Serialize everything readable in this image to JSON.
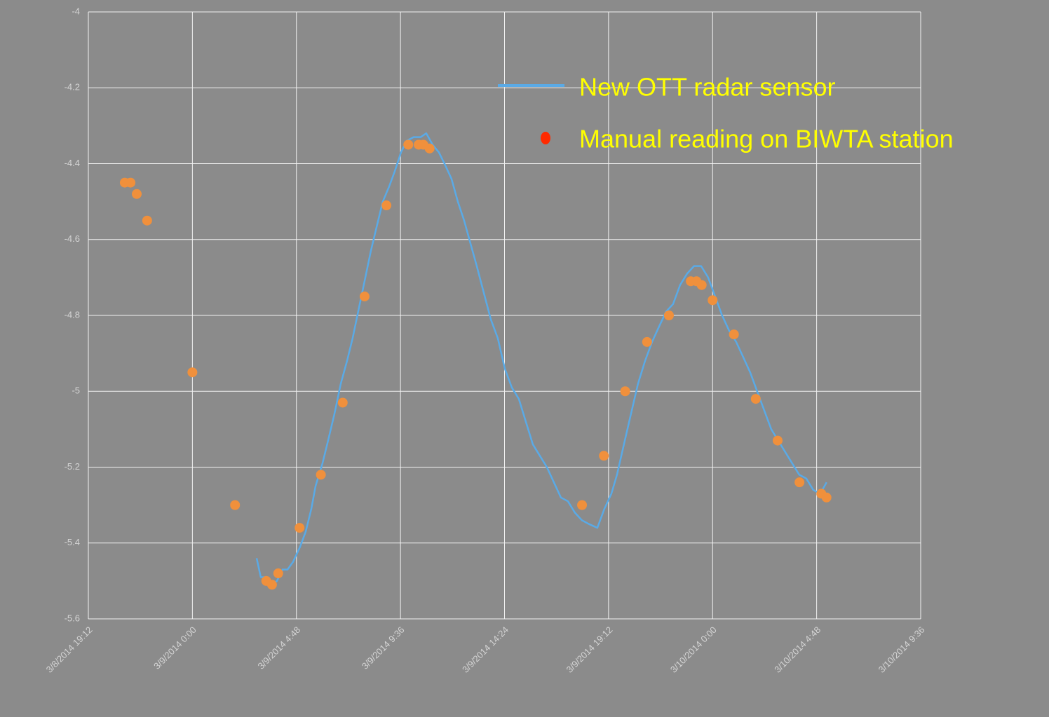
{
  "chart_data": {
    "type": "scatter",
    "xlim": [
      41706.8,
      41708.4
    ],
    "xticks": [
      {
        "value": 41706.8,
        "label": "3/8/2014 19:12"
      },
      {
        "value": 41707,
        "label": "3/9/2014 0:00"
      },
      {
        "value": 41707.2,
        "label": "3/9/2014 4:48"
      },
      {
        "value": 41707.4,
        "label": "3/9/2014 9:36"
      },
      {
        "value": 41707.6,
        "label": "3/9/2014 14:24"
      },
      {
        "value": 41707.8,
        "label": "3/9/2014 19:12"
      },
      {
        "value": 41708,
        "label": "3/10/2014 0:00"
      },
      {
        "value": 41708.2,
        "label": "3/10/2014 4:48"
      },
      {
        "value": 41708.4,
        "label": "3/10/2014 9:36"
      }
    ],
    "ylim": [
      -5.6,
      -4
    ],
    "yticks": [
      -4,
      -4.2,
      -4.4,
      -4.6,
      -4.8,
      -5,
      -5.2,
      -5.4,
      -5.6
    ],
    "grid": true,
    "series": [
      {
        "name": "New OTT radar sensor",
        "type": "line",
        "color": "#5aaae6",
        "x": [
          41707.1235,
          41707.1315,
          41707.1423,
          41707.1531,
          41707.1625,
          41707.1733,
          41707.1828,
          41707.1935,
          41707.207,
          41707.2178,
          41707.2286,
          41707.2367,
          41707.2501,
          41707.2609,
          41707.273,
          41707.2852,
          41707.2973,
          41707.3081,
          41707.3202,
          41707.331,
          41707.3431,
          41707.3553,
          41707.366,
          41707.3782,
          41707.389,
          41707.4011,
          41707.4119,
          41707.4253,
          41707.4388,
          41707.4496,
          41707.4617,
          41707.4739,
          41707.4846,
          41707.4981,
          41707.5102,
          41707.5224,
          41707.5345,
          41707.5466,
          41707.5601,
          41707.5736,
          41707.5871,
          41707.6005,
          41707.614,
          41707.6275,
          41707.641,
          41707.6544,
          41707.6679,
          41707.6814,
          41707.6949,
          41707.7084,
          41707.7218,
          41707.7353,
          41707.7488,
          41707.7623,
          41707.7784,
          41707.7919,
          41707.8054,
          41707.8162,
          41707.8296,
          41707.8431,
          41707.8566,
          41707.8701,
          41707.8836,
          41707.897,
          41707.9105,
          41707.924,
          41707.9375,
          41707.9509,
          41707.9644,
          41707.9779,
          41707.9914,
          41708.0049,
          41708.0183,
          41708.0318,
          41708.0453,
          41708.0588,
          41708.0722,
          41708.0857,
          41708.0992,
          41708.1127,
          41708.1261,
          41708.1396,
          41708.1531,
          41708.1666,
          41708.1801,
          41708.1935,
          41708.207,
          41708.2191
        ],
        "values": [
          -5.44,
          -5.49,
          -5.49,
          -5.51,
          -5.5,
          -5.47,
          -5.47,
          -5.45,
          -5.41,
          -5.37,
          -5.31,
          -5.25,
          -5.19,
          -5.13,
          -5.06,
          -4.98,
          -4.92,
          -4.86,
          -4.78,
          -4.71,
          -4.63,
          -4.56,
          -4.5,
          -4.46,
          -4.42,
          -4.37,
          -4.34,
          -4.33,
          -4.33,
          -4.32,
          -4.35,
          -4.37,
          -4.4,
          -4.44,
          -4.5,
          -4.55,
          -4.61,
          -4.67,
          -4.74,
          -4.81,
          -4.86,
          -4.94,
          -4.99,
          -5.02,
          -5.08,
          -5.14,
          -5.17,
          -5.2,
          -5.24,
          -5.28,
          -5.29,
          -5.32,
          -5.34,
          -5.35,
          -5.36,
          -5.31,
          -5.27,
          -5.22,
          -5.14,
          -5.06,
          -4.98,
          -4.92,
          -4.87,
          -4.83,
          -4.79,
          -4.77,
          -4.72,
          -4.69,
          -4.67,
          -4.67,
          -4.7,
          -4.75,
          -4.8,
          -4.84,
          -4.87,
          -4.91,
          -4.95,
          -5.0,
          -5.05,
          -5.1,
          -5.13,
          -5.16,
          -5.19,
          -5.22,
          -5.23,
          -5.26,
          -5.27,
          -5.24
        ]
      },
      {
        "name": "Manual reading on BIWTA station",
        "type": "scatter",
        "color": "#f0903c",
        "legend_color": "#ff2a00",
        "x": [
          41706.87,
          41706.881,
          41706.893,
          41706.913,
          41707.0,
          41707.082,
          41707.142,
          41707.153,
          41707.165,
          41707.206,
          41707.247,
          41707.289,
          41707.331,
          41707.373,
          41707.415,
          41707.435,
          41707.444,
          41707.456,
          41707.749,
          41707.791,
          41707.832,
          41707.874,
          41707.916,
          41707.958,
          41707.969,
          41707.979,
          41708.0,
          41708.041,
          41708.083,
          41708.125,
          41708.167,
          41708.209,
          41708.219
        ],
        "values": [
          -4.45,
          -4.45,
          -4.48,
          -4.55,
          -4.95,
          -5.3,
          -5.5,
          -5.51,
          -5.48,
          -5.36,
          -5.22,
          -5.03,
          -4.75,
          -4.51,
          -4.35,
          -4.35,
          -4.35,
          -4.36,
          -5.3,
          -5.17,
          -5.0,
          -4.87,
          -4.8,
          -4.71,
          -4.71,
          -4.72,
          -4.76,
          -4.85,
          -5.02,
          -5.13,
          -5.24,
          -5.27,
          -5.28
        ]
      }
    ]
  }
}
